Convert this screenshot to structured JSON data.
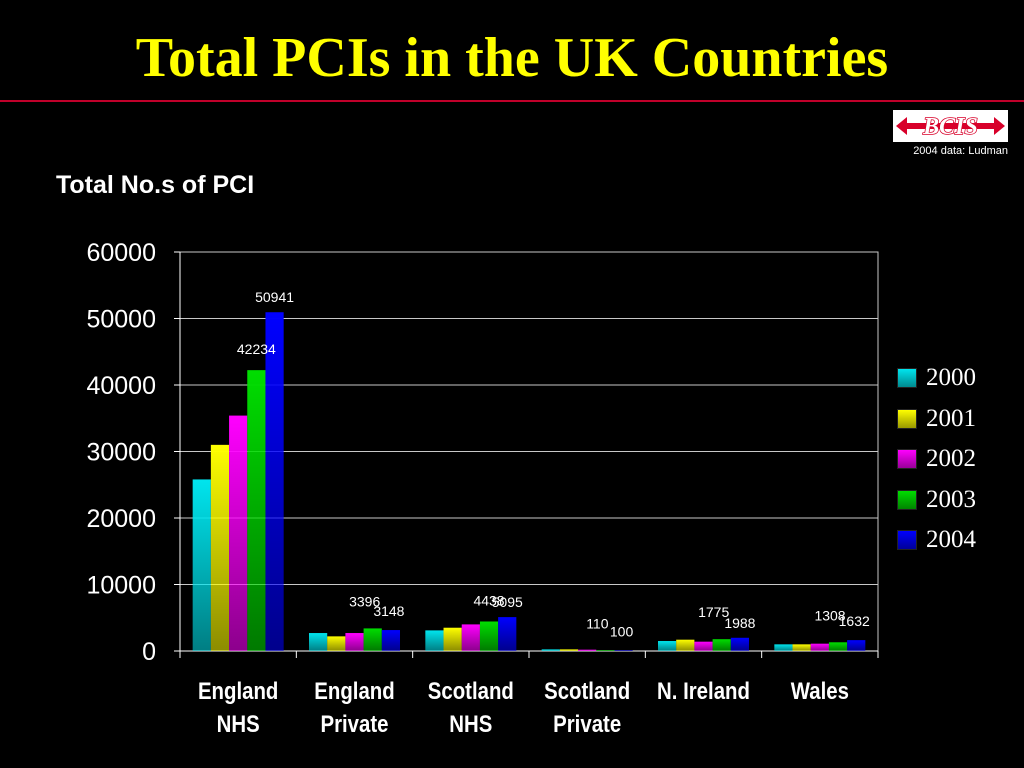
{
  "slide": {
    "title": "Total PCIs in the UK Countries",
    "subtitle": "Total No.s of PCI",
    "logo_text": "BCIS",
    "credit": "2004 data: Ludman"
  },
  "colors": {
    "title": "#ffff00",
    "rule": "#c0002a",
    "logo_red": "#d8002a"
  },
  "chart_data": {
    "type": "bar",
    "title": "",
    "categories": [
      [
        "England",
        "NHS"
      ],
      [
        "England",
        "Private"
      ],
      [
        "Scotland",
        "NHS"
      ],
      [
        "Scotland",
        "Private"
      ],
      [
        "N. Ireland"
      ],
      [
        "Wales"
      ]
    ],
    "ylim": [
      0,
      60000
    ],
    "yticks": [
      0,
      10000,
      20000,
      30000,
      40000,
      50000,
      60000
    ],
    "grid": true,
    "legend_position": "right",
    "series": [
      {
        "name": "2000",
        "color": "#00e5ee",
        "values": [
          25800,
          2700,
          3100,
          250,
          1500,
          1000
        ]
      },
      {
        "name": "2001",
        "color": "#ffff00",
        "values": [
          31000,
          2200,
          3500,
          250,
          1700,
          1000
        ]
      },
      {
        "name": "2002",
        "color": "#ff00ff",
        "values": [
          35400,
          2700,
          4000,
          200,
          1400,
          1100
        ]
      },
      {
        "name": "2003",
        "color": "#00dd00",
        "values": [
          42234,
          3396,
          4438,
          110,
          1775,
          1308
        ]
      },
      {
        "name": "2004",
        "color": "#0000ff",
        "values": [
          50941,
          3148,
          5095,
          100,
          1988,
          1632
        ]
      }
    ],
    "data_labels": [
      {
        "series": 4,
        "category": 0,
        "text": "50941"
      },
      {
        "series": 3,
        "category": 0,
        "text": "42234"
      },
      {
        "series": 3,
        "category": 1,
        "text": "3396"
      },
      {
        "series": 4,
        "category": 1,
        "text": "3148"
      },
      {
        "series": 3,
        "category": 2,
        "text": "4438"
      },
      {
        "series": 4,
        "category": 2,
        "text": "5095"
      },
      {
        "series": 3,
        "category": 3,
        "text": "110"
      },
      {
        "series": 4,
        "category": 3,
        "text": "100"
      },
      {
        "series": 3,
        "category": 4,
        "text": "1775"
      },
      {
        "series": 4,
        "category": 4,
        "text": "1988"
      },
      {
        "series": 3,
        "category": 5,
        "text": "1308"
      },
      {
        "series": 4,
        "category": 5,
        "text": "1632"
      }
    ]
  }
}
